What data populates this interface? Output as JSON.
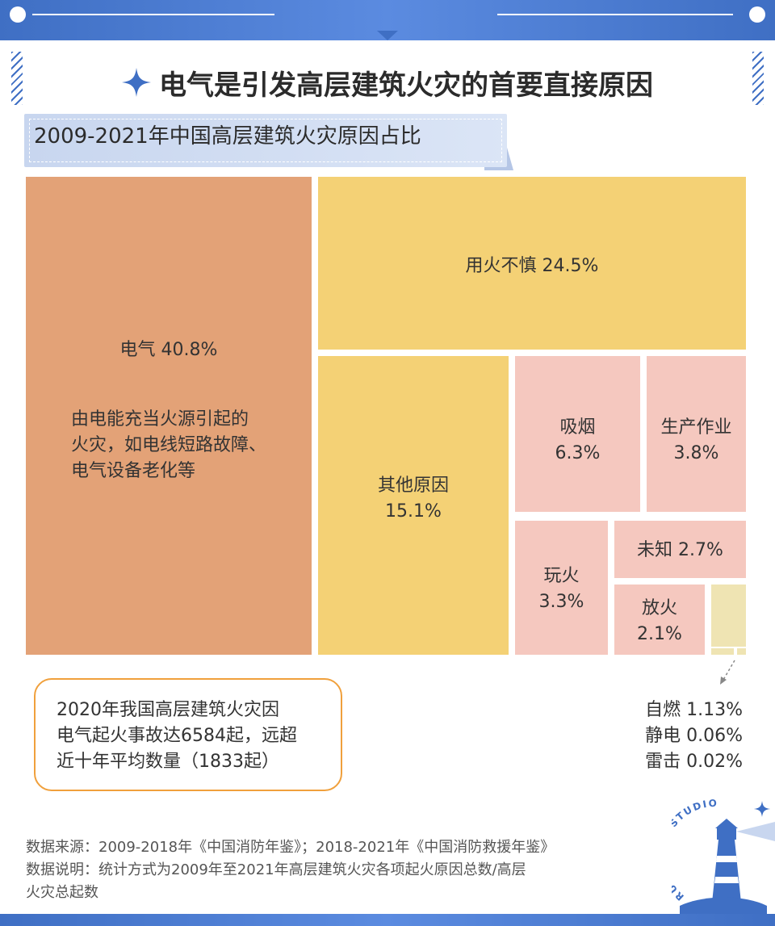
{
  "header": {
    "title": "电气是引发高层建筑火灾的首要直接原因",
    "subtitle": "2009-2021年中国高层建筑火灾原因占比"
  },
  "chart_data": {
    "type": "treemap",
    "title": "2009-2021年中国高层建筑火灾原因占比",
    "unit": "%",
    "items": [
      {
        "name": "电气",
        "value": 40.8,
        "label": "电气  40.8%",
        "color": "#e3a277"
      },
      {
        "name": "用火不慎",
        "value": 24.5,
        "label": "用火不慎  24.5%",
        "color": "#f4d175"
      },
      {
        "name": "其他原因",
        "value": 15.1,
        "label_line1": "其他原因",
        "label_line2": "15.1%",
        "color": "#f4d175"
      },
      {
        "name": "吸烟",
        "value": 6.3,
        "label_line1": "吸烟",
        "label_line2": "6.3%",
        "color": "#f5c8bf"
      },
      {
        "name": "生产作业",
        "value": 3.8,
        "label_line1": "生产作业",
        "label_line2": "3.8%",
        "color": "#f5c8bf"
      },
      {
        "name": "玩火",
        "value": 3.3,
        "label_line1": "玩火",
        "label_line2": "3.3%",
        "color": "#f5c8bf"
      },
      {
        "name": "未知",
        "value": 2.7,
        "label": "未知 2.7%",
        "color": "#f5c8bf"
      },
      {
        "name": "放火",
        "value": 2.1,
        "label_line1": "放火",
        "label_line2": "2.1%",
        "color": "#f5c8bf"
      },
      {
        "name": "自燃",
        "value": 1.13,
        "label": "自燃 1.13%",
        "color": "#efe4b3"
      },
      {
        "name": "静电",
        "value": 0.06,
        "label": "静电 0.06%",
        "color": "#efe4b3"
      },
      {
        "name": "雷击",
        "value": 0.02,
        "label": "雷击 0.02%",
        "color": "#efe4b3"
      }
    ],
    "electric_description": [
      "由电能充当火源引起的",
      "火灾，如电线短路故障、",
      "电气设备老化等"
    ]
  },
  "note": {
    "lines": [
      "2020年我国高层建筑火灾因",
      "电气起火事故达6584起，远超",
      "近十年平均数量（1833起）"
    ],
    "border_color": "#f0a03c"
  },
  "source": {
    "line1": "数据来源：2009-2018年《中国消防年鉴》；2018-2021年《中国消防救援年鉴》",
    "line2": "数据说明：统计方式为2009年至2021年高层建筑火灾各项起火原因总数/高层",
    "line3": "火灾总起数"
  },
  "logo": {
    "text": "RUC NEWS STUDIO",
    "icon": "lighthouse-icon"
  },
  "colors": {
    "accent": "#3f6fc4",
    "electric": "#e3a277",
    "yellow": "#f4d175",
    "pink": "#f5c8bf",
    "pale": "#efe4b3"
  }
}
